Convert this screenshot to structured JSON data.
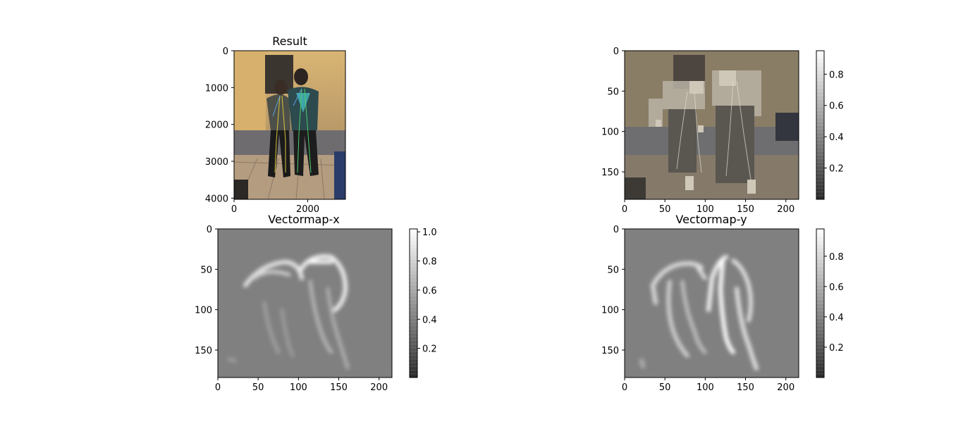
{
  "chart_data": [
    {
      "type": "image",
      "title": "Result",
      "xlim": [
        0,
        3024
      ],
      "ylim": [
        4032,
        0
      ],
      "xticks": [
        0,
        2000
      ],
      "yticks": [
        0,
        1000,
        2000,
        3000,
        4000
      ],
      "colorbar": null
    },
    {
      "type": "heatmap",
      "title": "",
      "xlim": [
        0,
        216
      ],
      "ylim": [
        184,
        0
      ],
      "xticks": [
        0,
        50,
        100,
        150,
        200
      ],
      "yticks": [
        0,
        50,
        100,
        150
      ],
      "colorbar": {
        "ticks": [
          0.2,
          0.4,
          0.6,
          0.8
        ],
        "range": [
          0.0,
          0.95
        ],
        "cmap": "gray"
      }
    },
    {
      "type": "heatmap",
      "title": "Vectormap-x",
      "xlim": [
        0,
        216
      ],
      "ylim": [
        184,
        0
      ],
      "xticks": [
        0,
        50,
        100,
        150,
        200
      ],
      "yticks": [
        0,
        50,
        100,
        150
      ],
      "colorbar": {
        "ticks": [
          0.2,
          0.4,
          0.6,
          0.8,
          1.0
        ],
        "range": [
          0.0,
          1.02
        ],
        "cmap": "gray"
      }
    },
    {
      "type": "heatmap",
      "title": "Vectormap-y",
      "xlim": [
        0,
        216
      ],
      "ylim": [
        184,
        0
      ],
      "xticks": [
        0,
        50,
        100,
        150,
        200
      ],
      "yticks": [
        0,
        50,
        100,
        150
      ],
      "colorbar": {
        "ticks": [
          0.2,
          0.4,
          0.6,
          0.8
        ],
        "range": [
          0.0,
          0.98
        ],
        "cmap": "gray"
      }
    }
  ],
  "colors": {
    "axis": "#000000",
    "background_gray": "#808080",
    "stroke_white": "#f2f2f2"
  }
}
